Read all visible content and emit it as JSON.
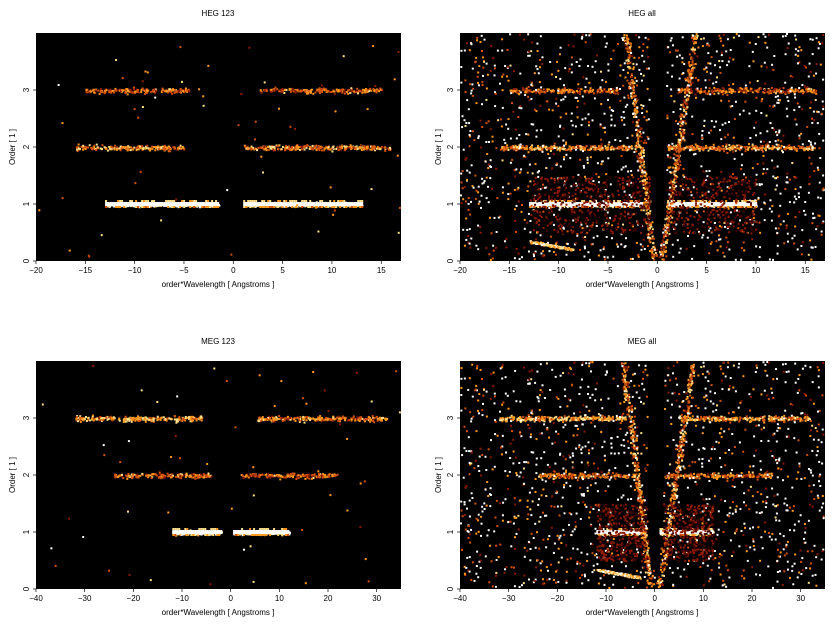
{
  "chart_data": [
    {
      "type": "heatmap",
      "title": "HEG 123",
      "xlabel": "order*Wavelength [ Angstroms ]",
      "ylabel": "Order [ 1 ]",
      "xlim": [
        -20,
        17
      ],
      "ylim": [
        0,
        4
      ],
      "xticks": [
        "−20",
        "−15",
        "−10",
        "−5",
        "0",
        "5",
        "10",
        "15"
      ],
      "xtick_values": [
        -20,
        -15,
        -10,
        -5,
        0,
        5,
        10,
        15
      ],
      "yticks": [
        "0",
        "1",
        "2",
        "3"
      ],
      "ytick_values": [
        0,
        1,
        2,
        3
      ],
      "colormap": [
        "#000000",
        "#3a0000",
        "#8b1a00",
        "#d2500a",
        "#ff9a1e",
        "#ffe08a",
        "#ffffff"
      ],
      "bands": [
        {
          "order": 1,
          "x_from": -13,
          "x_to": -1.5,
          "intensity": 0.95
        },
        {
          "order": 1,
          "x_from": 1,
          "x_to": 13,
          "intensity": 0.9
        },
        {
          "order": 2,
          "x_from": -16,
          "x_to": -5,
          "intensity": 0.6
        },
        {
          "order": 2,
          "x_from": 1,
          "x_to": 16,
          "intensity": 0.55
        },
        {
          "order": 3,
          "x_from": -15,
          "x_to": -4.5,
          "intensity": 0.45
        },
        {
          "order": 3,
          "x_from": 2.5,
          "x_to": 15,
          "intensity": 0.45
        }
      ],
      "background": "low"
    },
    {
      "type": "heatmap",
      "title": "HEG all",
      "xlabel": "order*Wavelength [ Angstroms ]",
      "ylabel": "Order [ 1 ]",
      "xlim": [
        -20,
        17
      ],
      "ylim": [
        0,
        4
      ],
      "xticks": [
        "−20",
        "−15",
        "−10",
        "−5",
        "0",
        "5",
        "10",
        "15"
      ],
      "xtick_values": [
        -20,
        -15,
        -10,
        -5,
        0,
        5,
        10,
        15
      ],
      "yticks": [
        "0",
        "1",
        "2",
        "3"
      ],
      "ytick_values": [
        0,
        1,
        2,
        3
      ],
      "colormap": [
        "#000000",
        "#3a0000",
        "#8b1a00",
        "#d2500a",
        "#ff9a1e",
        "#ffe08a",
        "#ffffff"
      ],
      "bands": [
        {
          "order": 1,
          "x_from": -13,
          "x_to": -1.5,
          "intensity": 0.95
        },
        {
          "order": 1,
          "x_from": 1,
          "x_to": 10,
          "intensity": 0.95
        },
        {
          "order": 2,
          "x_from": -16,
          "x_to": -2,
          "intensity": 0.6
        },
        {
          "order": 2,
          "x_from": 1,
          "x_to": 16,
          "intensity": 0.6
        },
        {
          "order": 3,
          "x_from": -15,
          "x_to": -4,
          "intensity": 0.45
        },
        {
          "order": 3,
          "x_from": 2,
          "x_to": 16,
          "intensity": 0.45
        }
      ],
      "background": "high"
    },
    {
      "type": "heatmap",
      "title": "MEG 123",
      "xlabel": "order*Wavelength [ Angstroms ]",
      "ylabel": "Order [ 1 ]",
      "xlim": [
        -40,
        35
      ],
      "ylim": [
        0,
        4
      ],
      "xticks": [
        "−40",
        "−30",
        "−20",
        "−10",
        "0",
        "10",
        "20",
        "30"
      ],
      "xtick_values": [
        -40,
        -30,
        -20,
        -10,
        0,
        10,
        20,
        30
      ],
      "yticks": [
        "0",
        "1",
        "2",
        "3"
      ],
      "ytick_values": [
        0,
        1,
        2,
        3
      ],
      "colormap": [
        "#000000",
        "#3a0000",
        "#8b1a00",
        "#d2500a",
        "#ff9a1e",
        "#ffe08a",
        "#ffffff"
      ],
      "bands": [
        {
          "order": 1,
          "x_from": -12,
          "x_to": -2,
          "intensity": 0.95
        },
        {
          "order": 1,
          "x_from": 0.5,
          "x_to": 12,
          "intensity": 0.9
        },
        {
          "order": 2,
          "x_from": -24,
          "x_to": -4,
          "intensity": 0.5
        },
        {
          "order": 2,
          "x_from": 2,
          "x_to": 22,
          "intensity": 0.45
        },
        {
          "order": 3,
          "x_from": -32,
          "x_to": -6,
          "intensity": 0.65
        },
        {
          "order": 3,
          "x_from": 5,
          "x_to": 32,
          "intensity": 0.55
        }
      ],
      "background": "low"
    },
    {
      "type": "heatmap",
      "title": "MEG all",
      "xlabel": "order*Wavelength [ Angstroms ]",
      "ylabel": "Order [ 1 ]",
      "xlim": [
        -40,
        35
      ],
      "ylim": [
        0,
        4
      ],
      "xticks": [
        "−40",
        "−30",
        "−20",
        "−10",
        "0",
        "10",
        "20",
        "30"
      ],
      "xtick_values": [
        -40,
        -30,
        -20,
        -10,
        0,
        10,
        20,
        30
      ],
      "yticks": [
        "0",
        "1",
        "2",
        "3"
      ],
      "ytick_values": [
        0,
        1,
        2,
        3
      ],
      "colormap": [
        "#000000",
        "#3a0000",
        "#8b1a00",
        "#d2500a",
        "#ff9a1e",
        "#ffe08a",
        "#ffffff"
      ],
      "bands": [
        {
          "order": 1,
          "x_from": -12,
          "x_to": -2,
          "intensity": 0.95
        },
        {
          "order": 1,
          "x_from": 1,
          "x_to": 12,
          "intensity": 0.95
        },
        {
          "order": 2,
          "x_from": -24,
          "x_to": -4,
          "intensity": 0.5
        },
        {
          "order": 2,
          "x_from": 2,
          "x_to": 24,
          "intensity": 0.5
        },
        {
          "order": 3,
          "x_from": -32,
          "x_to": -6,
          "intensity": 0.7
        },
        {
          "order": 3,
          "x_from": 5,
          "x_to": 32,
          "intensity": 0.6
        }
      ],
      "background": "high"
    }
  ]
}
